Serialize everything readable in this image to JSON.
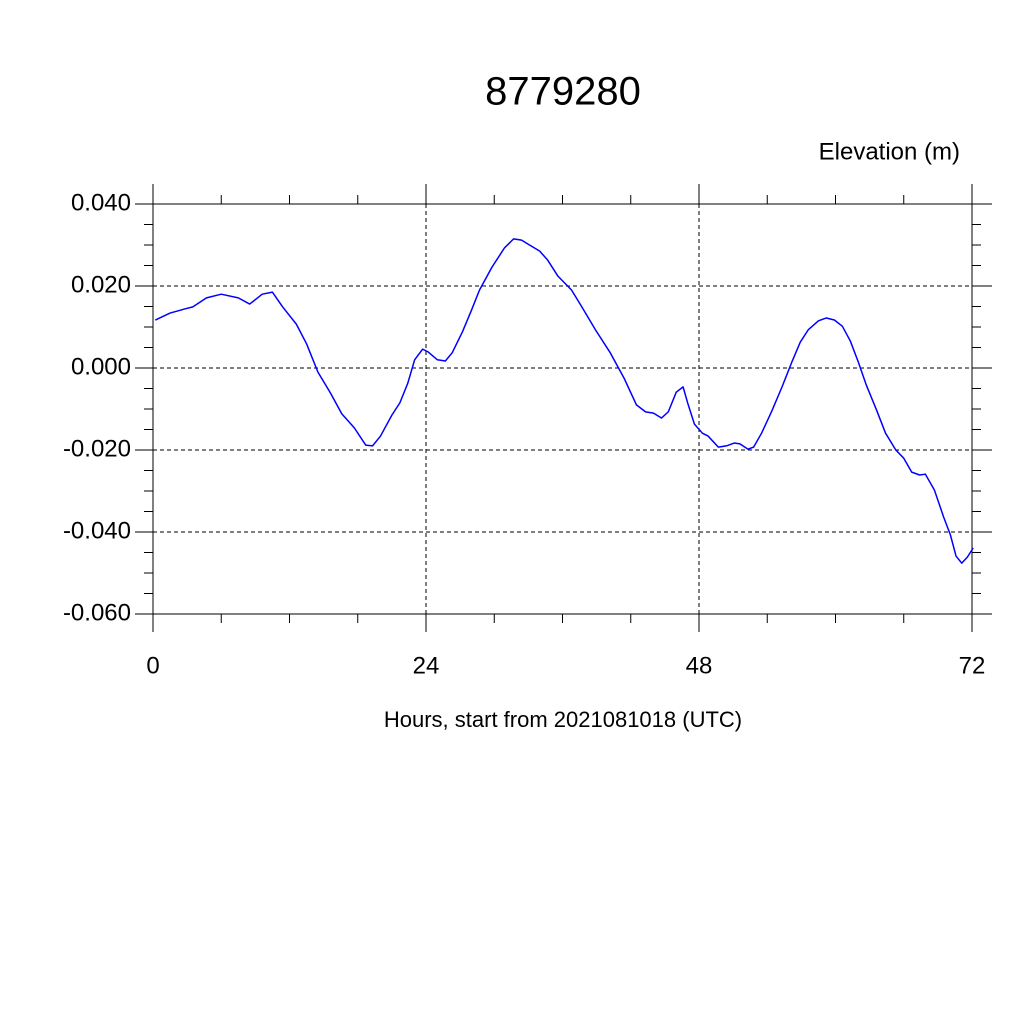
{
  "chart_data": {
    "type": "line",
    "title": "8779280",
    "ylabel": "Elevation (m)",
    "xlabel": "Hours, start from 2021081018 (UTC)",
    "grid": true,
    "xlim": [
      0,
      72
    ],
    "xticks": [
      0,
      24,
      48,
      72
    ],
    "ylim": [
      -0.06,
      0.04
    ],
    "yticks": [
      {
        "value": -0.06,
        "label": "-0.060"
      },
      {
        "value": -0.04,
        "label": "-0.040"
      },
      {
        "value": -0.02,
        "label": "-0.020"
      },
      {
        "value": 0,
        "label": "0.000"
      },
      {
        "value": 0.02,
        "label": "0.020"
      },
      {
        "value": 0.04,
        "label": "0.040"
      }
    ],
    "series": [
      {
        "color": "#0000ff",
        "x": [
          0.2,
          1.5,
          2.8,
          3.5,
          4.7,
          6.0,
          7.5,
          8.5,
          9.6,
          10.5,
          11.4,
          12.6,
          13.5,
          14.5,
          15.6,
          16.6,
          17.7,
          18.7,
          19.3,
          20.0,
          21.0,
          21.7,
          22.4,
          23.0,
          23.7,
          24.2,
          25.0,
          25.7,
          26.3,
          27.2,
          28.0,
          28.7,
          29.8,
          30.9,
          31.7,
          32.4,
          33.1,
          34.0,
          34.7,
          35.6,
          36.8,
          37.7,
          38.9,
          40.2,
          41.4,
          42.5,
          43.3,
          44.0,
          44.7,
          45.3,
          46.0,
          46.6,
          47.0,
          47.6,
          48.3,
          48.8,
          49.7,
          50.4,
          51.1,
          51.6,
          52.3,
          52.8,
          53.5,
          54.4,
          55.3,
          56.2,
          56.9,
          57.6,
          58.5,
          59.2,
          59.9,
          60.6,
          61.3,
          62.0,
          62.7,
          63.6,
          64.4,
          65.3,
          66.0,
          66.7,
          67.4,
          67.9,
          68.7,
          69.5,
          70.1,
          70.6,
          71.1,
          71.6,
          72.1
        ],
        "values": [
          0.0117,
          0.0134,
          0.0144,
          0.0149,
          0.0171,
          0.018,
          0.0171,
          0.0156,
          0.018,
          0.0185,
          0.0149,
          0.0107,
          0.0059,
          -0.001,
          -0.0061,
          -0.0112,
          -0.0146,
          -0.0188,
          -0.019,
          -0.0166,
          -0.0115,
          -0.0085,
          -0.0037,
          0.002,
          0.0046,
          0.0039,
          0.002,
          0.0017,
          0.0037,
          0.0088,
          0.0141,
          0.019,
          0.0246,
          0.0293,
          0.0315,
          0.0312,
          0.03,
          0.0285,
          0.0263,
          0.0224,
          0.019,
          0.0149,
          0.0093,
          0.0037,
          -0.0024,
          -0.009,
          -0.0107,
          -0.011,
          -0.0122,
          -0.0107,
          -0.0059,
          -0.0046,
          -0.0085,
          -0.0137,
          -0.0159,
          -0.0166,
          -0.0193,
          -0.019,
          -0.0183,
          -0.0185,
          -0.0198,
          -0.0193,
          -0.0159,
          -0.0105,
          -0.0046,
          0.0017,
          0.0063,
          0.0093,
          0.0115,
          0.0122,
          0.0117,
          0.0102,
          0.0066,
          0.0015,
          -0.0041,
          -0.0102,
          -0.0159,
          -0.02,
          -0.022,
          -0.0254,
          -0.0261,
          -0.0259,
          -0.0298,
          -0.0363,
          -0.0407,
          -0.0459,
          -0.0476,
          -0.0461,
          -0.0439
        ]
      }
    ]
  }
}
